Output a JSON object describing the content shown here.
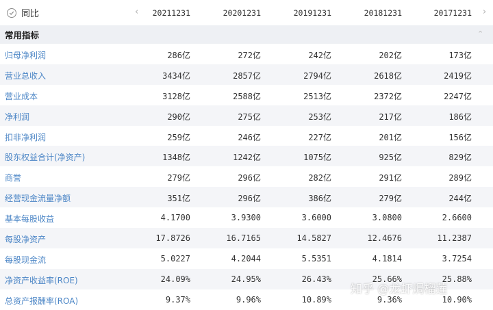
{
  "header": {
    "toggle_label": "同比",
    "nav_left": "‹",
    "nav_right": "›",
    "columns": [
      "20211231",
      "20201231",
      "20191231",
      "20181231",
      "20171231"
    ]
  },
  "section": {
    "title": "常用指标",
    "collapse_glyph": "⌃"
  },
  "rows": [
    {
      "label": "归母净利润",
      "values": [
        "286亿",
        "272亿",
        "242亿",
        "202亿",
        "173亿"
      ]
    },
    {
      "label": "营业总收入",
      "values": [
        "3434亿",
        "2857亿",
        "2794亿",
        "2618亿",
        "2419亿"
      ]
    },
    {
      "label": "营业成本",
      "values": [
        "3128亿",
        "2588亿",
        "2513亿",
        "2372亿",
        "2247亿"
      ]
    },
    {
      "label": "净利润",
      "values": [
        "290亿",
        "275亿",
        "253亿",
        "217亿",
        "186亿"
      ]
    },
    {
      "label": "扣非净利润",
      "values": [
        "259亿",
        "246亿",
        "227亿",
        "201亿",
        "156亿"
      ]
    },
    {
      "label": "股东权益合计(净资产)",
      "values": [
        "1348亿",
        "1242亿",
        "1075亿",
        "925亿",
        "829亿"
      ]
    },
    {
      "label": "商誉",
      "values": [
        "279亿",
        "296亿",
        "282亿",
        "291亿",
        "289亿"
      ]
    },
    {
      "label": "经营现金流量净额",
      "values": [
        "351亿",
        "296亿",
        "386亿",
        "279亿",
        "244亿"
      ]
    },
    {
      "label": "基本每股收益",
      "values": [
        "4.1700",
        "3.9300",
        "3.6000",
        "3.0800",
        "2.6600"
      ]
    },
    {
      "label": "每股净资产",
      "values": [
        "17.8726",
        "16.7165",
        "14.5827",
        "12.4676",
        "11.2387"
      ]
    },
    {
      "label": "每股现金流",
      "values": [
        "5.0227",
        "4.2044",
        "5.5351",
        "4.1814",
        "3.7254"
      ]
    },
    {
      "label": "净资产收益率(ROE)",
      "values": [
        "24.09%",
        "24.95%",
        "26.43%",
        "25.66%",
        "25.88%"
      ]
    },
    {
      "label": "总资产报酬率(ROA)",
      "values": [
        "9.37%",
        "9.96%",
        "10.89%",
        "9.36%",
        "10.90%"
      ]
    }
  ],
  "watermark": "知乎 @龙虾焗榴莲"
}
